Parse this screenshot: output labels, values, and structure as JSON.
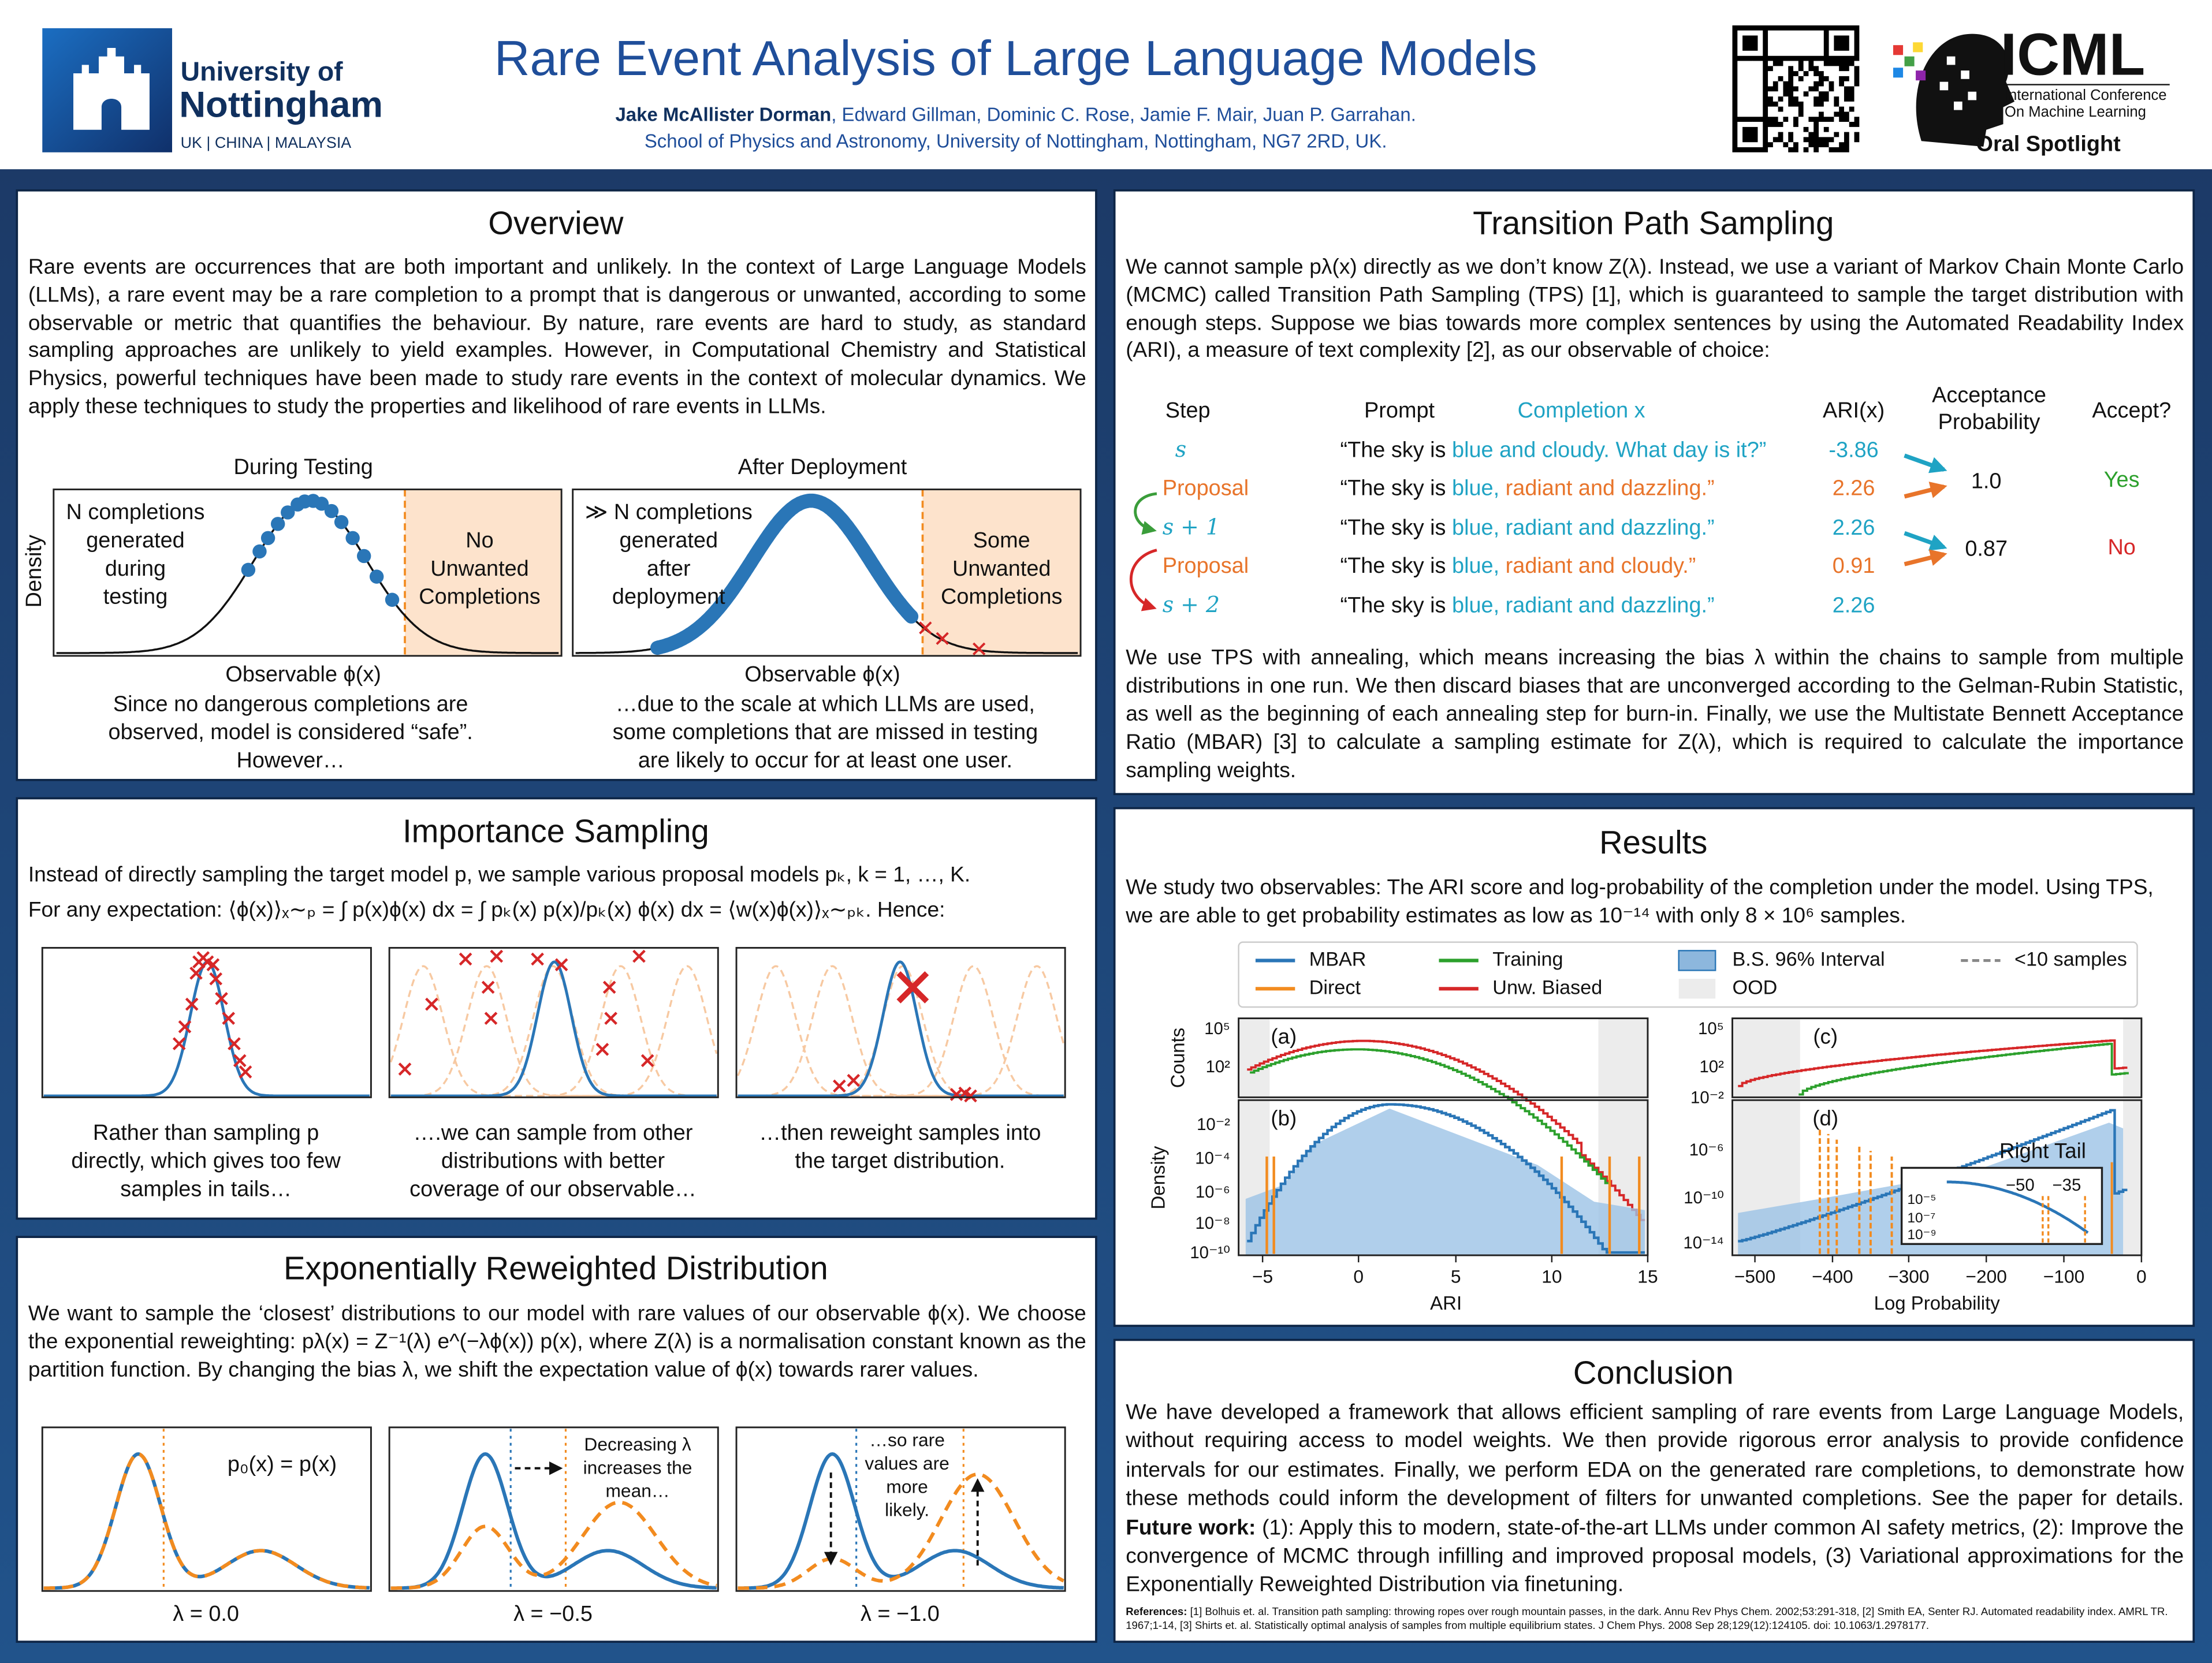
{
  "header": {
    "university": [
      "University of",
      "Nottingham"
    ],
    "campuses": "UK | CHINA | MALAYSIA",
    "title": "Rare Event Analysis of Large Language Models",
    "lead_author": "Jake McAllister Dorman",
    "coauthors": ", Edward Gillman, Dominic C. Rose, Jamie F. Mair, Juan P. Garrahan.",
    "affiliation": "School of Physics and Astronomy, University of Nottingham, Nottingham, NG7 2RD, UK.",
    "conference": "ICML",
    "conference_name": [
      "International Conference",
      "On Machine Learning"
    ],
    "badge": "Oral Spotlight"
  },
  "overview": {
    "title": "Overview",
    "text": "Rare events are occurrences that are both important and unlikely. In the context of Large Language Models (LLMs), a rare event may be a rare completion to a prompt that is dangerous or unwanted, according to some observable or metric that quantifies the behaviour. By nature, rare events are hard to study, as standard sampling approaches are unlikely to yield examples. However, in Computational Chemistry and Statistical Physics, powerful techniques have been made to study rare events in the context of molecular dynamics. We apply these techniques to study the properties and likelihood of rare events in LLMs.",
    "ylabel": "Density",
    "panels": [
      {
        "title": "During Testing",
        "box_text": [
          "N completions",
          "generated",
          "during",
          "testing"
        ],
        "region_text": [
          "No",
          "Unwanted",
          "Completions"
        ],
        "xlabel": "Observable ϕ(x)",
        "caption": [
          "Since no dangerous completions are",
          "observed, model is considered “safe”.",
          "However…"
        ]
      },
      {
        "title": "After Deployment",
        "box_text": [
          "≫ N completions",
          "generated",
          "after",
          "deployment"
        ],
        "region_text": [
          "Some",
          "Unwanted",
          "Completions"
        ],
        "xlabel": "Observable ϕ(x)",
        "caption": [
          "…due to the scale at which LLMs are used,",
          "some completions that are missed in testing",
          "are likely to occur for at least one user."
        ]
      }
    ]
  },
  "importance_sampling": {
    "title": "Importance Sampling",
    "text": [
      "Instead of directly sampling the target model p, we sample various proposal models  pₖ,  k = 1, …, K.",
      "For any expectation: ⟨ϕ(x)⟩ₓ∼ₚ = ∫ p(x)ϕ(x) dx = ∫ pₖ(x) p(x)/pₖ(x) ϕ(x) dx = ⟨w(x)ϕ(x)⟩ₓ∼ₚₖ. Hence:"
    ],
    "captions": [
      [
        "Rather than sampling p",
        "directly, which gives too few",
        "samples in tails…"
      ],
      [
        "….we can sample from other",
        "distributions with better",
        "coverage of our observable…"
      ],
      [
        "…then reweight samples into",
        "the target distribution."
      ]
    ]
  },
  "exponential": {
    "title": "Exponentially Reweighted Distribution",
    "text": "We want to sample the ‘closest’ distributions to our model with rare values of our observable ϕ(x). We choose the exponential reweighting: pλ(x) = Z⁻¹(λ) e^(−λϕ(x)) p(x), where Z(λ) is a normalisation constant known as the partition function. By changing the bias λ, we shift the expectation value of ϕ(x) towards rarer values.",
    "panels": [
      {
        "annotation": [
          "p₀(x) = p(x)"
        ],
        "label": "λ = 0.0"
      },
      {
        "annotation": [
          "Decreasing λ",
          "increases the",
          "mean…"
        ],
        "label": "λ = −0.5"
      },
      {
        "annotation": [
          "…so rare",
          "values are",
          "more",
          "likely."
        ],
        "label": "λ = −1.0"
      }
    ]
  },
  "tps": {
    "title": "Transition Path Sampling",
    "intro": "We cannot sample pλ(x) directly as we don’t know Z(λ). Instead, we use a variant of Markov Chain Monte Carlo (MCMC) called Transition Path Sampling (TPS) [1], which is guaranteed to sample the target distribution with enough steps. Suppose we bias towards more complex sentences by using the Automated Readability Index (ARI), a measure of text complexity [2], as our observable of choice:",
    "table": {
      "headers": {
        "step": "Step",
        "prompt": "Prompt",
        "completion": "Completion x",
        "ari": "ARI(x)",
        "acceptance": [
          "Acceptance",
          "Probability"
        ],
        "accept": "Accept?"
      },
      "rows": [
        {
          "step": "s",
          "prompt": "“The sky is",
          "kept": "blue and cloudy. What day is it?”",
          "ari": "-3.86"
        },
        {
          "step": "Proposal",
          "prompt": "“The sky is",
          "kept": "blue,",
          "new": "radiant and dazzling.”",
          "ari": "2.26"
        },
        {
          "step": "s + 1",
          "prompt": "“The sky is",
          "kept": "blue, radiant and dazzling.”",
          "ari": "2.26"
        },
        {
          "step": "Proposal",
          "prompt": "“The sky is",
          "kept": "blue,",
          "new": "radiant and cloudy.”",
          "ari": "0.91"
        },
        {
          "step": "s + 2",
          "prompt": "“The sky is",
          "kept": "blue, radiant and dazzling.”",
          "ari": "2.26"
        }
      ],
      "decisions": [
        {
          "probability": "1.0",
          "accept": "Yes"
        },
        {
          "probability": "0.87",
          "accept": "No"
        }
      ]
    },
    "text": "We use TPS with annealing, which means increasing the bias λ within the chains to sample from multiple distributions in one run. We then discard biases that are unconverged according to the Gelman-Rubin Statistic, as well as the beginning of each annealing step for burn-in. Finally, we use the Multistate Bennett Acceptance Ratio (MBAR) [3] to calculate a sampling estimate for Z(λ), which is required to calculate the importance sampling weights."
  },
  "results": {
    "title": "Results",
    "text": "We study two observables: The ARI score and log-probability of the completion under the model. Using TPS, we are able to get probability estimates as low as 10⁻¹⁴ with only 8 × 10⁶ samples.",
    "legend": [
      "MBAR",
      "Direct",
      "Training",
      "Unw. Biased",
      "B.S. 96% Interval",
      "OOD",
      "<10 samples"
    ],
    "ari_plot": {
      "panels": [
        "(a)",
        "(b)"
      ],
      "ylabels": [
        "Counts",
        "Density"
      ],
      "counts_ticks": [
        "10⁵",
        "10²"
      ],
      "density_ticks": [
        "10⁻²",
        "10⁻⁴",
        "10⁻⁶",
        "10⁻⁸",
        "10⁻¹⁰"
      ],
      "xticks": [
        "−5",
        "0",
        "5",
        "10",
        "15"
      ],
      "xlabel": "ARI"
    },
    "logprob_plot": {
      "panels": [
        "(c)",
        "(d)"
      ],
      "counts_ticks": [
        "10⁵",
        "10²",
        "10⁻²"
      ],
      "density_ticks": [
        "10⁻⁶",
        "10⁻¹⁰",
        "10⁻¹⁴"
      ],
      "xticks": [
        "−500",
        "−400",
        "−300",
        "−200",
        "−100",
        "0"
      ],
      "xlabel": "Log Probability",
      "inset": {
        "title": "Right Tail",
        "xticks": [
          "−50",
          "−35"
        ],
        "yticks": [
          "10⁻⁵",
          "10⁻⁷",
          "10⁻⁹"
        ]
      }
    }
  },
  "conclusion": {
    "title": "Conclusion",
    "text": "We have developed a framework that allows efficient sampling of rare events from Large Language Models, without requiring access to model weights. We then provide rigorous error analysis to provide confidence intervals for our estimates. Finally, we perform EDA on the generated rare completions, to demonstrate how these methods could inform the development of filters for unwanted completions. See the paper for details.",
    "future_label": "Future work:",
    "future": "(1): Apply this to modern, state-of-the-art LLMs under common AI safety metrics, (2): Improve the convergence of MCMC through infilling and improved proposal models, (3) Variational approximations for the Exponentially Reweighted Distribution via finetuning.",
    "references_label": "References:",
    "references": "[1] Bolhuis et. al. Transition path sampling: throwing ropes over rough mountain passes, in the dark. Annu Rev Phys Chem. 2002;53:291-318, [2] Smith EA, Senter RJ. Automated readability index. AMRL TR. 1967;1-14, [3] Shirts et. al. Statistically optimal analysis of samples from multiple equilibrium states. J Chem Phys. 2008 Sep 28;129(12):124105. doi: 10.1063/1.2978177."
  }
}
